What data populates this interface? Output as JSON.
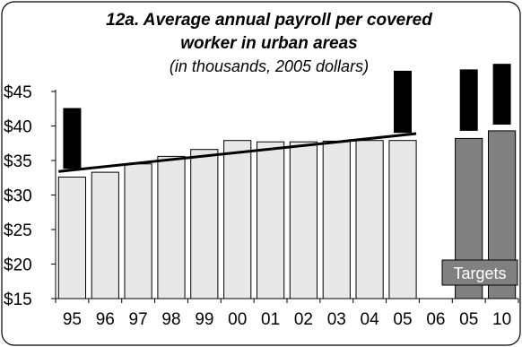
{
  "chart_data": {
    "type": "bar",
    "title_line1": "12a. Average annual payroll per covered",
    "title_line2": "worker in urban areas",
    "subtitle": "(in thousands, 2005 dollars)",
    "xlabel": "",
    "ylabel": "",
    "ylim": [
      15,
      45
    ],
    "yticks": [
      15,
      20,
      25,
      30,
      35,
      40,
      45
    ],
    "ytick_labels": [
      "$15",
      "$20",
      "$25",
      "$30",
      "$35",
      "$40",
      "$45"
    ],
    "categories": [
      "95",
      "96",
      "97",
      "98",
      "99",
      "00",
      "01",
      "02",
      "03",
      "04",
      "05",
      "06",
      "05",
      "10"
    ],
    "series": [
      {
        "name": "",
        "values": [
          32.6,
          33.3,
          34.5,
          35.6,
          36.6,
          37.9,
          37.7,
          37.7,
          37.8,
          37.9,
          37.9,
          null,
          38.2,
          39.3
        ],
        "kinds": [
          "actual",
          "actual",
          "actual",
          "actual",
          "actual",
          "actual",
          "actual",
          "actual",
          "actual",
          "actual",
          "actual",
          "none",
          "target",
          "target"
        ]
      }
    ],
    "trend_line": {
      "from_category_index": 0,
      "to_category_index": 10,
      "from_value": 33.4,
      "to_value": 38.9
    },
    "markers": [
      {
        "category_index": 0,
        "low": 33.8,
        "high": 42.6
      },
      {
        "category_index": 10,
        "low": 39.0,
        "high": 48.0
      },
      {
        "category_index": 12,
        "low": 39.3,
        "high": 48.2
      },
      {
        "category_index": 13,
        "low": 40.2,
        "high": 49.0
      }
    ],
    "targets_label": "Targets",
    "grid": false,
    "legend": "none",
    "colors": {
      "actual_bar": "#e8e8e8",
      "target_bar": "#808080",
      "marker": "#000000",
      "trend": "#000000",
      "axis": "#000000"
    }
  }
}
